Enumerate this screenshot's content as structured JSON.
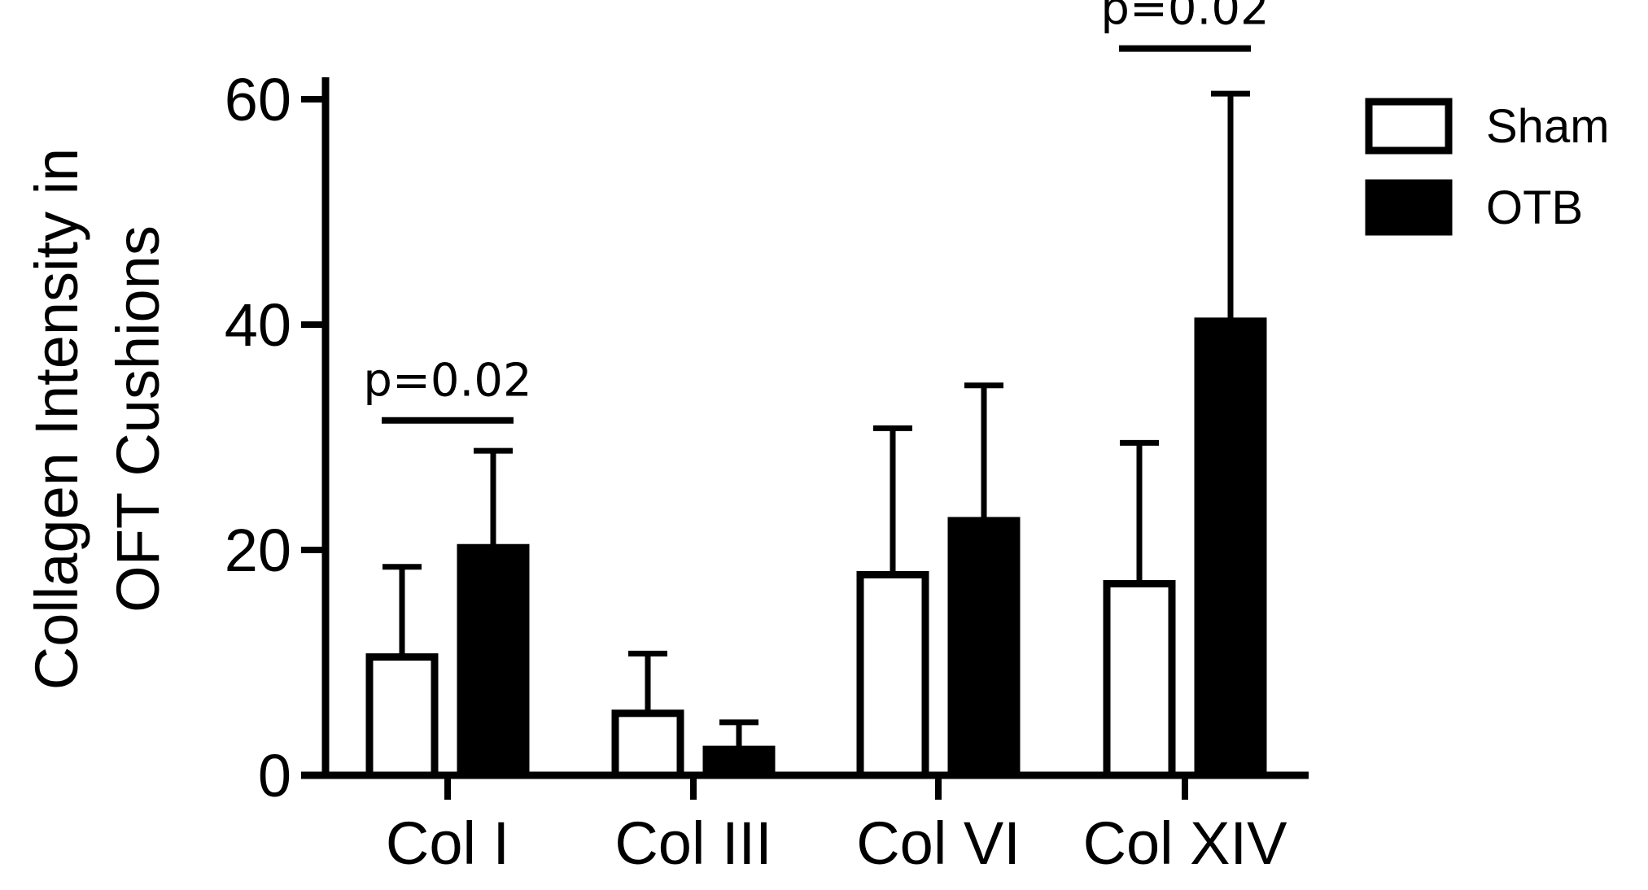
{
  "chart_data": {
    "type": "bar",
    "title": "",
    "xlabel": "",
    "ylabel_lines": [
      "Collagen Intensity in",
      "OFT Cushions"
    ],
    "categories": [
      "Col I",
      "Col III",
      "Col VI",
      "Col XIV"
    ],
    "series": [
      {
        "name": "Sham",
        "values": [
          10.5,
          5.5,
          17.8,
          17.0
        ],
        "errors": [
          8.0,
          5.3,
          13.0,
          12.5
        ]
      },
      {
        "name": "OTB",
        "values": [
          20.2,
          2.3,
          22.6,
          40.3
        ],
        "errors": [
          8.6,
          2.4,
          12.0,
          20.2
        ]
      }
    ],
    "ylim": [
      0,
      65
    ],
    "yticks": [
      0,
      20,
      40,
      60
    ],
    "ytick_labels": [
      "0",
      "20",
      "40",
      "60"
    ],
    "legend": {
      "position": "top-right",
      "entries": [
        "Sham",
        "OTB"
      ]
    },
    "annotations": [
      {
        "text": "p=0.02",
        "category": "Col I",
        "bracket_value": 31.5
      },
      {
        "text": "p=0.02",
        "category": "Col XIV",
        "bracket_value": 64.5
      }
    ],
    "colors": {
      "Sham": "#ffffff",
      "OTB": "#000000",
      "edge": "#000000"
    }
  }
}
